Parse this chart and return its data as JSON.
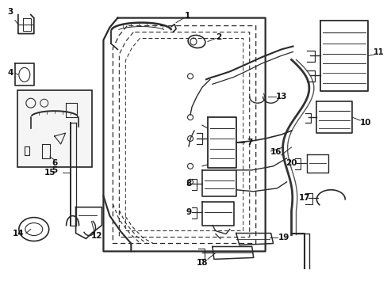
{
  "bg_color": "#ffffff",
  "lc": "#2a2a2a",
  "label_fs": 7.5,
  "door": {
    "outer_x": [
      2.55,
      2.55,
      2.78,
      3.18,
      6.95,
      6.95,
      2.55
    ],
    "outer_y": [
      0.45,
      6.15,
      6.62,
      6.88,
      6.88,
      0.45,
      0.45
    ],
    "dash1_x": [
      2.72,
      2.72,
      2.92,
      3.32,
      6.75,
      6.75,
      2.72
    ],
    "dash1_y": [
      0.52,
      5.98,
      6.42,
      6.68,
      6.68,
      0.52,
      0.52
    ],
    "dash2_x": [
      2.85,
      2.85,
      3.02,
      3.42,
      6.58,
      6.58,
      2.85
    ],
    "dash2_y": [
      0.58,
      5.82,
      6.22,
      6.48,
      6.48,
      0.58,
      0.58
    ],
    "dash3_x": [
      2.98,
      2.98,
      3.15,
      3.52,
      6.42,
      6.42,
      2.98
    ],
    "dash3_y": [
      0.62,
      5.68,
      6.05,
      6.28,
      6.28,
      0.62,
      0.62
    ]
  }
}
